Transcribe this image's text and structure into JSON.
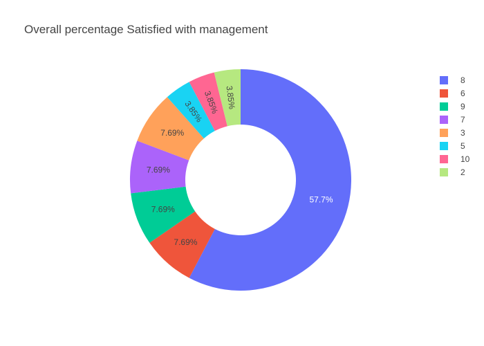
{
  "chart_data": {
    "type": "pie",
    "hole": true,
    "title": "Overall percentage Satisfied with management",
    "legend_position": "right",
    "slices": [
      {
        "label": "8",
        "value": 57.7,
        "text": "57.7%",
        "color": "#636efa",
        "text_color": "#ffffff"
      },
      {
        "label": "6",
        "value": 7.69,
        "text": "7.69%",
        "color": "#ef553b",
        "text_color": "#444444"
      },
      {
        "label": "9",
        "value": 7.69,
        "text": "7.69%",
        "color": "#00cc96",
        "text_color": "#444444"
      },
      {
        "label": "7",
        "value": 7.69,
        "text": "7.69%",
        "color": "#ab63fa",
        "text_color": "#444444"
      },
      {
        "label": "3",
        "value": 7.69,
        "text": "7.69%",
        "color": "#ffa15a",
        "text_color": "#444444"
      },
      {
        "label": "5",
        "value": 3.85,
        "text": "3.85%",
        "color": "#19d3f3",
        "text_color": "#444444"
      },
      {
        "label": "10",
        "value": 3.85,
        "text": "3.85%",
        "color": "#ff6692",
        "text_color": "#444444"
      },
      {
        "label": "2",
        "value": 3.85,
        "text": "3.85%",
        "color": "#b6e880",
        "text_color": "#444444"
      }
    ]
  }
}
